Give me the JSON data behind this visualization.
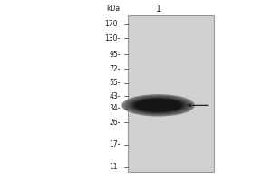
{
  "kda_labels": [
    "170",
    "130",
    "95",
    "72",
    "55",
    "43",
    "34",
    "26",
    "17",
    "11"
  ],
  "kda_values": [
    170,
    130,
    95,
    72,
    55,
    43,
    34,
    26,
    17,
    11
  ],
  "kda_unit": "kDa",
  "lane_label": "1",
  "band_kda": 36,
  "gel_bg_color": "#d0d0d0",
  "outer_bg": "#ffffff",
  "fig_width": 3.0,
  "fig_height": 2.0,
  "dpi": 100,
  "label_fontsize": 5.5,
  "lane_label_fontsize": 7
}
